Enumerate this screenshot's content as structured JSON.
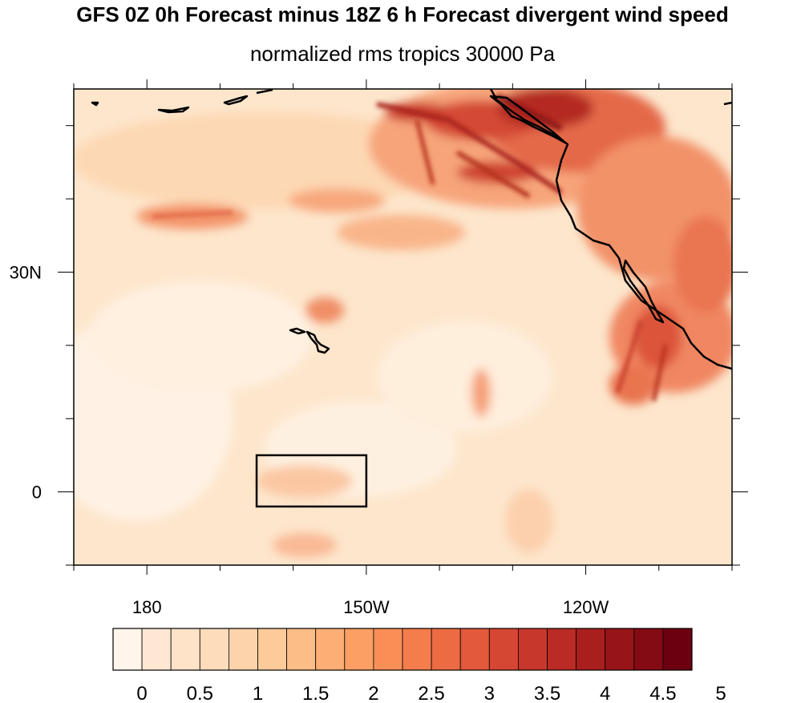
{
  "title": "GFS 0Z 0h Forecast minus 18Z 6 h Forecast divergent wind speed",
  "subtitle": "normalized rms tropics 30000 Pa",
  "map": {
    "projection": "cylindrical equidistant",
    "lon_range": [
      170,
      260
    ],
    "lat_range": [
      -10,
      55
    ],
    "x_ticks": [
      {
        "lon": 180,
        "label": "180"
      },
      {
        "lon": 210,
        "label": "150W"
      },
      {
        "lon": 240,
        "label": "120W"
      }
    ],
    "y_ticks": [
      {
        "lat": 0,
        "label": "0"
      },
      {
        "lat": 30,
        "label": "30N"
      }
    ],
    "box_region": {
      "lon": [
        195,
        210
      ],
      "lat": [
        -2,
        5
      ]
    }
  },
  "colorbar": {
    "labels": [
      "0",
      "0.5",
      "1",
      "1.5",
      "2",
      "2.5",
      "3",
      "3.5",
      "4",
      "4.5",
      "5"
    ],
    "colors": [
      "#fff5eb",
      "#fee8d4",
      "#fee3c8",
      "#fddcbc",
      "#fdd3ab",
      "#fdca9a",
      "#fdbd86",
      "#fcae75",
      "#fb9f65",
      "#f98f57",
      "#f47d4c",
      "#ec6b43",
      "#e2593b",
      "#d64733",
      "#c8372b",
      "#b92b24",
      "#a91f1e",
      "#971518",
      "#840b14",
      "#6d0010"
    ]
  }
}
